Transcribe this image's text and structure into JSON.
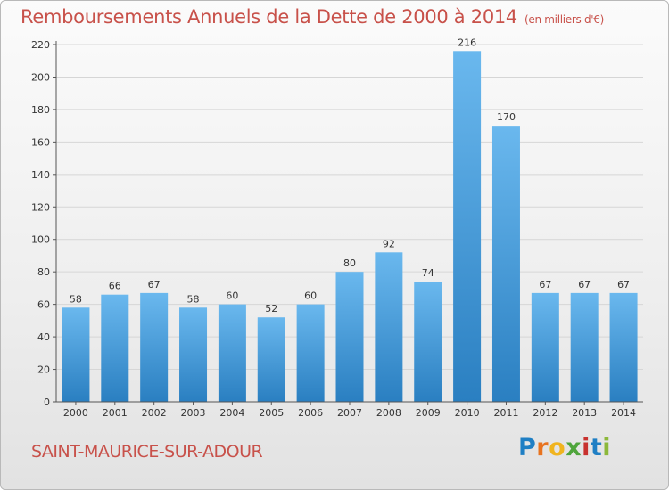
{
  "header": {
    "title": "Remboursements Annuels de la Dette de 2000 à 2014",
    "unit": "(en milliers d'€)"
  },
  "footer": {
    "commune": "SAINT-MAURICE-SUR-ADOUR",
    "logo_letters": [
      "P",
      "r",
      "o",
      "x",
      "i",
      "t",
      "i"
    ],
    "logo_colors": [
      "#1f7fc4",
      "#e8731f",
      "#f0b41f",
      "#4fa53c",
      "#c8322f",
      "#1f7fc4",
      "#8cb83a"
    ]
  },
  "colors": {
    "bar_light": "#6ab8ee",
    "bar_dark": "#2a7fc1",
    "grid": "#d6d6d6",
    "axis": "#555555"
  },
  "chart_data": {
    "type": "bar",
    "categories": [
      "2000",
      "2001",
      "2002",
      "2003",
      "2004",
      "2005",
      "2006",
      "2007",
      "2008",
      "2009",
      "2010",
      "2011",
      "2012",
      "2013",
      "2014"
    ],
    "values": [
      58,
      66,
      67,
      58,
      60,
      52,
      60,
      80,
      92,
      74,
      216,
      170,
      67,
      67,
      67
    ],
    "title": "Remboursements Annuels de la Dette de 2000 à 2014",
    "xlabel": "",
    "ylabel": "",
    "ylim": [
      0,
      220
    ],
    "yticks": [
      0,
      20,
      40,
      60,
      80,
      100,
      120,
      140,
      160,
      180,
      200,
      220
    ],
    "grid": true,
    "data_labels": true
  }
}
